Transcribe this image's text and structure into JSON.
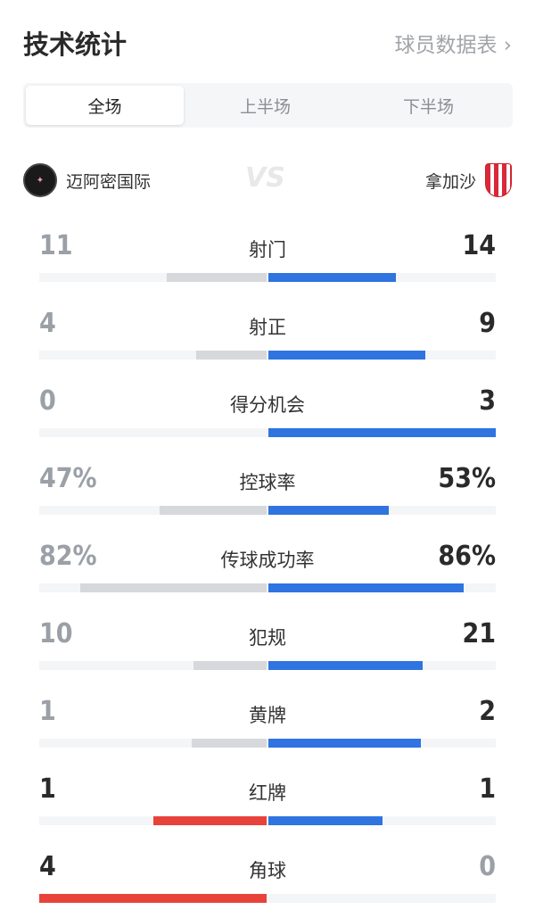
{
  "header": {
    "title": "技术统计",
    "player_stats_link": "球员数据表 ›"
  },
  "tabs": [
    {
      "label": "全场",
      "active": true
    },
    {
      "label": "上半场"
    },
    {
      "label": "下半场"
    }
  ],
  "teams": {
    "home": "迈阿密国际",
    "away": "拿加沙",
    "vs": "VS"
  },
  "colors": {
    "blue": "#2f74e0",
    "gray": "#d6d8dc",
    "red": "#e8433a",
    "dark": "#2a2a2a",
    "muted": "#9aa0a6"
  },
  "stats": [
    {
      "label": "射门",
      "home": "11",
      "away": "14",
      "home_share": 0.44,
      "away_share": 0.56,
      "home_bar": "gray"
    },
    {
      "label": "射正",
      "home": "4",
      "away": "9",
      "home_share": 0.31,
      "away_share": 0.69,
      "home_bar": "gray"
    },
    {
      "label": "得分机会",
      "home": "0",
      "away": "3",
      "home_share": 0,
      "away_share": 1,
      "home_bar": "gray"
    },
    {
      "label": "控球率",
      "home": "47%",
      "away": "53%",
      "home_share": 0.47,
      "away_share": 0.53,
      "home_bar": "gray"
    },
    {
      "label": "传球成功率",
      "home": "82%",
      "away": "86%",
      "home_share": 0.82,
      "away_share": 0.86,
      "home_bar": "gray"
    },
    {
      "label": "犯规",
      "home": "10",
      "away": "21",
      "home_share": 0.32,
      "away_share": 0.68,
      "home_bar": "gray"
    },
    {
      "label": "黄牌",
      "home": "1",
      "away": "2",
      "home_share": 0.33,
      "away_share": 0.67,
      "home_bar": "gray"
    },
    {
      "label": "红牌",
      "home": "1",
      "away": "1",
      "home_share": 0.5,
      "away_share": 0.5,
      "home_bar": "red"
    },
    {
      "label": "角球",
      "home": "4",
      "away": "0",
      "home_share": 1,
      "away_share": 0,
      "home_bar": "red"
    }
  ]
}
